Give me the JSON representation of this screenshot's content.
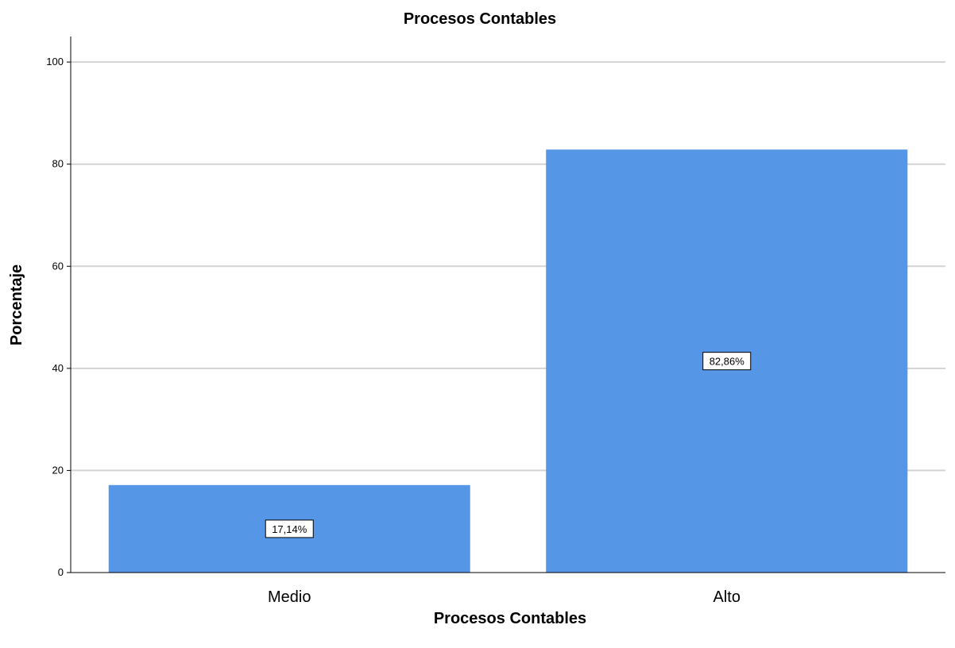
{
  "chart_data": {
    "type": "bar",
    "title": "Procesos Contables",
    "xlabel": "Procesos Contables",
    "ylabel": "Porcentaje",
    "categories": [
      "Medio",
      "Alto"
    ],
    "values": [
      17.14,
      82.86
    ],
    "data_labels": [
      "17,14%",
      "82,86%"
    ],
    "ylim": [
      0,
      105
    ],
    "yticks": [
      0,
      20,
      40,
      60,
      80,
      100
    ],
    "ytick_labels": [
      "0",
      "20",
      "40",
      "60",
      "80",
      "100"
    ],
    "grid": true,
    "legend": "none",
    "colors": {
      "bar": "#5596E6",
      "grid": "#D3D3D3",
      "axis": "#000000",
      "label_box": "#FFFFFF"
    }
  }
}
